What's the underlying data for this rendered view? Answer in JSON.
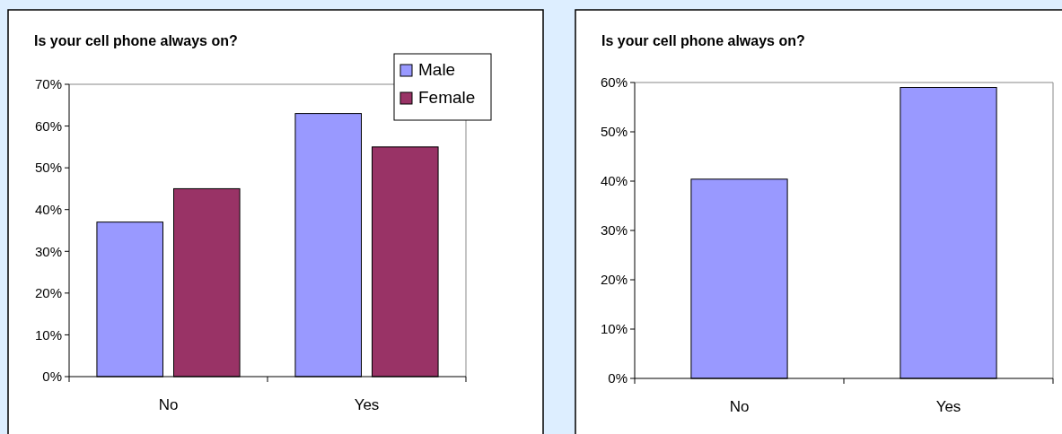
{
  "chart_data": [
    {
      "type": "bar",
      "title": "Is your cell phone always on?",
      "categories": [
        "No",
        "Yes"
      ],
      "series": [
        {
          "name": "Male",
          "color": "#9999ff",
          "values": [
            37,
            63
          ]
        },
        {
          "name": "Female",
          "color": "#993366",
          "values": [
            45,
            55
          ]
        }
      ],
      "ylim": [
        0,
        70
      ],
      "yticks": [
        {
          "value": 0,
          "label": "0%"
        },
        {
          "value": 10,
          "label": "10%"
        },
        {
          "value": 20,
          "label": "20%"
        },
        {
          "value": 30,
          "label": "30%"
        },
        {
          "value": 40,
          "label": "40%"
        },
        {
          "value": 50,
          "label": "50%"
        },
        {
          "value": 60,
          "label": "60%"
        },
        {
          "value": 70,
          "label": "70%"
        }
      ],
      "legend": "top right"
    },
    {
      "type": "bar",
      "title": "Is your cell phone always on?",
      "categories": [
        "No",
        "Yes"
      ],
      "series": [
        {
          "color": "#9999ff",
          "values": [
            40.4,
            59
          ]
        }
      ],
      "ylim": [
        0,
        60
      ],
      "yticks": [
        {
          "value": 0,
          "label": "0%"
        },
        {
          "value": 10,
          "label": "10%"
        },
        {
          "value": 20,
          "label": "20%"
        },
        {
          "value": 30,
          "label": "30%"
        },
        {
          "value": 40,
          "label": "40%"
        },
        {
          "value": 50,
          "label": "50%"
        },
        {
          "value": 60,
          "label": "60%"
        }
      ]
    }
  ]
}
